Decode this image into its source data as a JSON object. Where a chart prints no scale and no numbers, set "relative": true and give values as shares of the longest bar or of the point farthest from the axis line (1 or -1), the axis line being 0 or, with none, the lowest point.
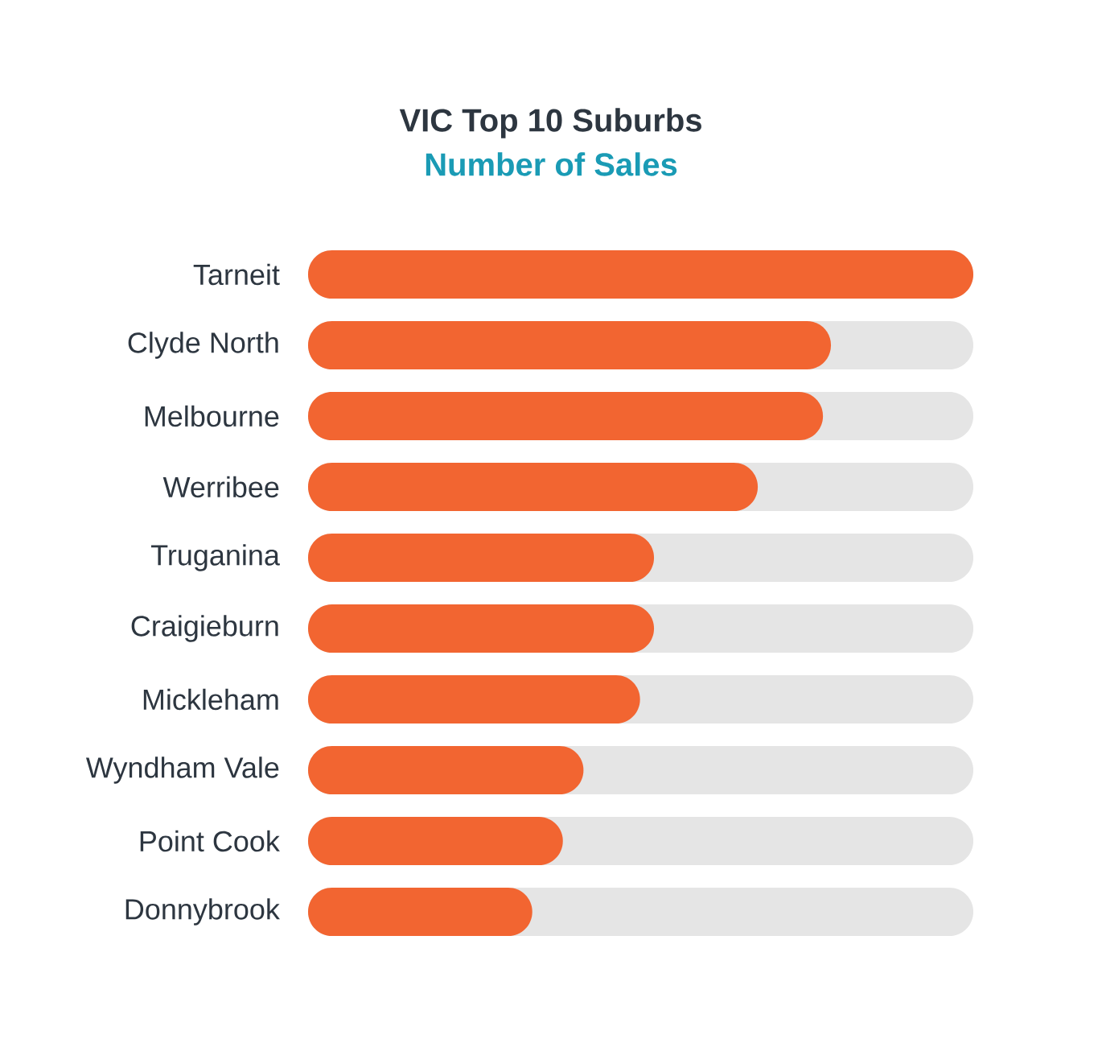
{
  "chart_data": {
    "type": "bar",
    "orientation": "horizontal",
    "relative": true,
    "title": "VIC Top 10 Suburbs",
    "subtitle": "Number of Sales",
    "categories": [
      "Tarneit",
      "Clyde North",
      "Melbourne",
      "Werribee",
      "Truganina",
      "Craigieburn",
      "Mickleham",
      "Wyndham Vale",
      "Point Cook",
      "Donnybrook"
    ],
    "values": [
      1,
      0.786,
      0.774,
      0.676,
      0.52,
      0.52,
      0.499,
      0.414,
      0.383,
      0.337
    ],
    "color": "#f26531"
  }
}
